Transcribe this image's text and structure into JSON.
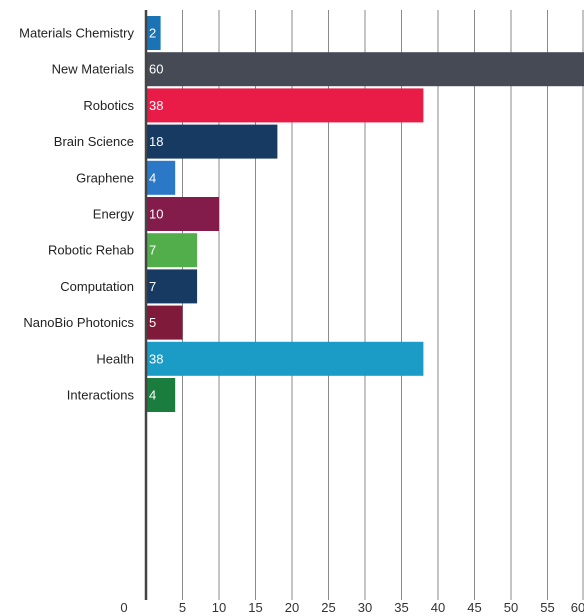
{
  "chart_data": {
    "type": "bar",
    "orientation": "horizontal",
    "categories": [
      "Materials Chemistry",
      "New Materials",
      "Robotics",
      "Brain Science",
      "Graphene",
      "Energy",
      "Robotic Rehab",
      "Computation",
      "NanoBio Photonics",
      "Health",
      "Interactions"
    ],
    "values": [
      2,
      60,
      38,
      18,
      4,
      10,
      7,
      7,
      5,
      38,
      4
    ],
    "colors": [
      "#1a73b5",
      "#454a55",
      "#e81c47",
      "#173a63",
      "#2a78c6",
      "#831c4b",
      "#52ae4a",
      "#173a63",
      "#7f1a3b",
      "#1a9cc7",
      "#1a7d3d"
    ],
    "x_ticks": [
      0,
      5,
      10,
      15,
      20,
      25,
      30,
      35,
      40,
      45,
      50,
      55,
      60
    ],
    "xlim": [
      0,
      60
    ],
    "grid": true,
    "title": "",
    "xlabel": "",
    "ylabel": ""
  }
}
